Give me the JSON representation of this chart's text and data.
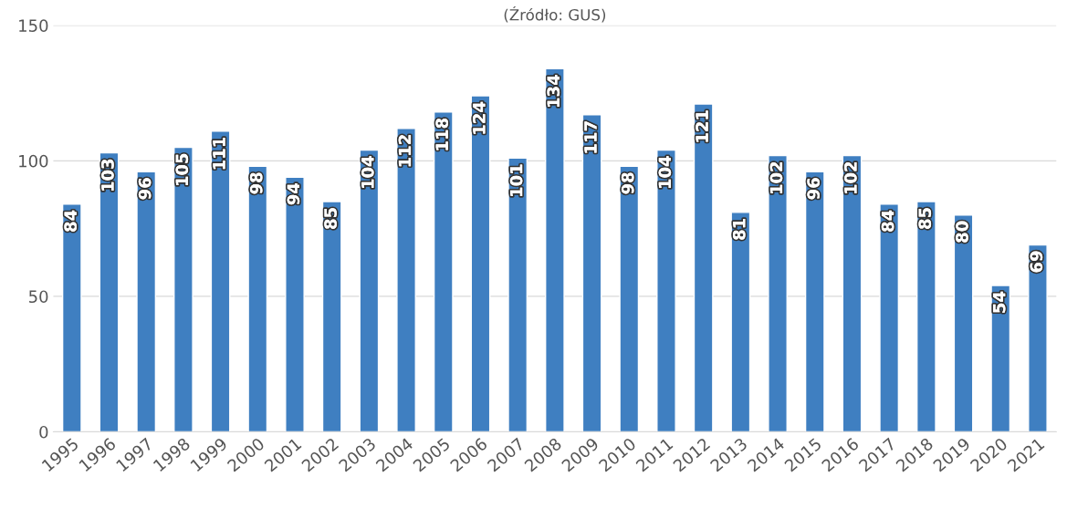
{
  "chart_data": {
    "type": "bar",
    "title": "(Źródło: GUS)",
    "categories": [
      "1995",
      "1996",
      "1997",
      "1998",
      "1999",
      "2000",
      "2001",
      "2002",
      "2003",
      "2004",
      "2005",
      "2006",
      "2007",
      "2008",
      "2009",
      "2010",
      "2011",
      "2012",
      "2013",
      "2014",
      "2015",
      "2016",
      "2017",
      "2018",
      "2019",
      "2020",
      "2021"
    ],
    "values": [
      84,
      103,
      96,
      105,
      111,
      98,
      94,
      85,
      104,
      112,
      118,
      124,
      101,
      134,
      117,
      98,
      104,
      121,
      81,
      102,
      96,
      102,
      84,
      85,
      80,
      54,
      69
    ],
    "color": "#3f7fc1",
    "ylim": [
      0,
      150
    ],
    "yticks": [
      0,
      50,
      100,
      150
    ],
    "grid": "y",
    "data_labels": true
  }
}
